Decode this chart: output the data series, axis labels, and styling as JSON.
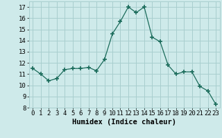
{
  "x": [
    0,
    1,
    2,
    3,
    4,
    5,
    6,
    7,
    8,
    9,
    10,
    11,
    12,
    13,
    14,
    15,
    16,
    17,
    18,
    19,
    20,
    21,
    22,
    23
  ],
  "y": [
    11.5,
    11.0,
    10.4,
    10.6,
    11.4,
    11.5,
    11.5,
    11.6,
    11.3,
    12.3,
    14.6,
    15.7,
    17.0,
    16.5,
    17.0,
    14.3,
    13.9,
    11.8,
    11.0,
    11.2,
    11.2,
    9.9,
    9.5,
    8.3
  ],
  "xlabel": "Humidex (Indice chaleur)",
  "xlim": [
    -0.5,
    23.5
  ],
  "ylim": [
    8,
    17.5
  ],
  "yticks": [
    8,
    9,
    10,
    11,
    12,
    13,
    14,
    15,
    16,
    17
  ],
  "xticks": [
    0,
    1,
    2,
    3,
    4,
    5,
    6,
    7,
    8,
    9,
    10,
    11,
    12,
    13,
    14,
    15,
    16,
    17,
    18,
    19,
    20,
    21,
    22,
    23
  ],
  "line_color": "#1a6b5a",
  "marker": "+",
  "marker_size": 4.0,
  "bg_color": "#ceeaea",
  "grid_color": "#a8cece",
  "label_fontsize": 7.5,
  "tick_fontsize": 6.5
}
